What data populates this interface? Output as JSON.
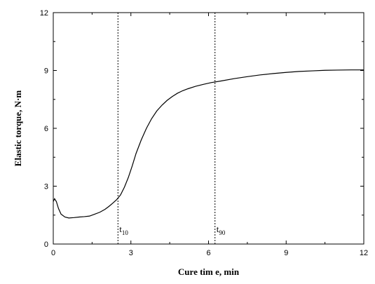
{
  "chart_data": {
    "type": "line",
    "title": "",
    "xlabel": "Cure tim e, min",
    "ylabel": "Elastic torque, N·m",
    "xlim": [
      0,
      12
    ],
    "ylim": [
      0,
      12
    ],
    "x_ticks": [
      0,
      3,
      6,
      9,
      12
    ],
    "y_ticks": [
      0,
      3,
      6,
      9,
      12
    ],
    "x_tick_labels": [
      "0",
      "3",
      "6",
      "9",
      "12"
    ],
    "y_tick_labels": [
      "0",
      "3",
      "6",
      "9",
      "12"
    ],
    "grid": false,
    "legend": "none",
    "series": [
      {
        "color": "#000000",
        "x": [
          0.0,
          0.05,
          0.12,
          0.2,
          0.3,
          0.45,
          0.6,
          0.8,
          1.0,
          1.2,
          1.4,
          1.6,
          1.8,
          2.0,
          2.15,
          2.3,
          2.45,
          2.6,
          2.75,
          2.9,
          3.05,
          3.2,
          3.4,
          3.6,
          3.8,
          4.0,
          4.2,
          4.4,
          4.6,
          4.8,
          5.0,
          5.2,
          5.5,
          5.8,
          6.1,
          6.5,
          7.0,
          7.5,
          8.0,
          8.5,
          9.0,
          9.5,
          10.0,
          10.5,
          11.0,
          11.5,
          12.0
        ],
        "y": [
          2.2,
          2.35,
          2.2,
          1.85,
          1.55,
          1.4,
          1.35,
          1.37,
          1.4,
          1.42,
          1.45,
          1.55,
          1.65,
          1.8,
          1.95,
          2.12,
          2.3,
          2.55,
          2.95,
          3.45,
          4.05,
          4.7,
          5.4,
          6.0,
          6.5,
          6.9,
          7.2,
          7.45,
          7.65,
          7.82,
          7.95,
          8.05,
          8.18,
          8.28,
          8.37,
          8.46,
          8.58,
          8.68,
          8.77,
          8.84,
          8.9,
          8.95,
          8.98,
          9.01,
          9.02,
          9.03,
          9.03
        ]
      }
    ],
    "markers": [
      {
        "label": "t",
        "sub": "10",
        "x": 2.5
      },
      {
        "label": "t",
        "sub": "90",
        "x": 6.25
      }
    ]
  }
}
